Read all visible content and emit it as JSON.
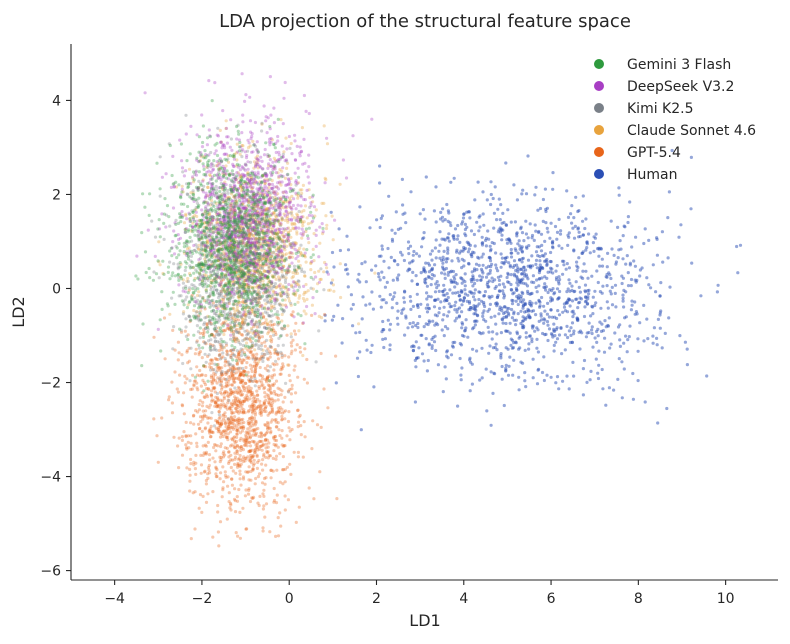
{
  "chart_data": {
    "type": "scatter",
    "title": "LDA projection of the structural feature space",
    "xlabel": "LD1",
    "ylabel": "LD2",
    "xlim": [
      -5.0,
      11.2
    ],
    "ylim": [
      -6.2,
      5.2
    ],
    "xticks": [
      -4,
      -2,
      0,
      2,
      4,
      6,
      8,
      10
    ],
    "yticks": [
      -6,
      -4,
      -2,
      0,
      2,
      4
    ],
    "tick_labels_x": [
      "−4",
      "−2",
      "0",
      "2",
      "4",
      "6",
      "8",
      "10"
    ],
    "tick_labels_y": [
      "−6",
      "−4",
      "−2",
      "0",
      "2",
      "4"
    ],
    "grid": false,
    "legend_position": "top-right",
    "series": [
      {
        "name": "Human",
        "color": "#2b4fb5",
        "opacity": 0.5,
        "count": 1500,
        "center": [
          5.0,
          0.0
        ],
        "spread": [
          1.7,
          1.0
        ],
        "clip_x": [
          0.8,
          10.6
        ],
        "clip_y": [
          -3.2,
          3.0
        ]
      },
      {
        "name": "GPT-5.4",
        "color": "#e8651a",
        "opacity": 0.35,
        "count": 1400,
        "center": [
          -1.1,
          -2.5
        ],
        "spread": [
          0.65,
          1.05
        ],
        "clip_x": [
          -3.6,
          2.0
        ],
        "clip_y": [
          -5.7,
          0.8
        ]
      },
      {
        "name": "Claude Sonnet 4.6",
        "color": "#e8a33d",
        "opacity": 0.35,
        "count": 1300,
        "center": [
          -0.8,
          0.9
        ],
        "spread": [
          0.7,
          0.9
        ],
        "clip_x": [
          -3.2,
          2.4
        ],
        "clip_y": [
          -2.2,
          3.8
        ]
      },
      {
        "name": "Kimi K2.5",
        "color": "#7a8088",
        "opacity": 0.35,
        "count": 1200,
        "center": [
          -1.2,
          0.4
        ],
        "spread": [
          0.65,
          1.1
        ],
        "clip_x": [
          -3.3,
          1.5
        ],
        "clip_y": [
          -3.0,
          3.8
        ]
      },
      {
        "name": "DeepSeek V3.2",
        "color": "#a83ec4",
        "opacity": 0.35,
        "count": 1100,
        "center": [
          -1.0,
          1.6
        ],
        "spread": [
          0.75,
          0.95
        ],
        "clip_x": [
          -3.7,
          2.0
        ],
        "clip_y": [
          -1.5,
          4.7
        ]
      },
      {
        "name": "Gemini 3 Flash",
        "color": "#2e9a3e",
        "opacity": 0.35,
        "count": 1100,
        "center": [
          -1.4,
          0.9
        ],
        "spread": [
          0.7,
          1.0
        ],
        "clip_x": [
          -4.4,
          1.3
        ],
        "clip_y": [
          -2.3,
          4.0
        ]
      }
    ],
    "legend_order": [
      "Gemini 3 Flash",
      "DeepSeek V3.2",
      "Kimi K2.5",
      "Claude Sonnet 4.6",
      "GPT-5.4",
      "Human"
    ]
  }
}
